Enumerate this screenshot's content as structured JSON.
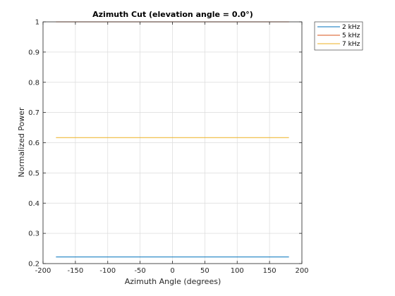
{
  "chart_data": {
    "type": "line",
    "title": "Azimuth Cut (elevation angle = 0.0°)",
    "xlabel": "Azimuth Angle (degrees)",
    "ylabel": "Normalized Power",
    "xlim": [
      -200,
      200
    ],
    "ylim": [
      0.2,
      1
    ],
    "xticks": [
      "-200",
      "-150",
      "-100",
      "-50",
      "0",
      "50",
      "100",
      "150",
      "200"
    ],
    "yticks": [
      "0.2",
      "0.3",
      "0.4",
      "0.5",
      "0.6",
      "0.7",
      "0.8",
      "0.9",
      "1"
    ],
    "grid": true,
    "legend_position": "outside-top-right",
    "series": [
      {
        "name": "2 kHz",
        "color": "#0072BD",
        "x": [
          -180,
          180
        ],
        "values": [
          0.222,
          0.222
        ]
      },
      {
        "name": "5 kHz",
        "color": "#D95319",
        "x": [
          -180,
          180
        ],
        "values": [
          1.0,
          1.0
        ]
      },
      {
        "name": "7 kHz",
        "color": "#EDB120",
        "x": [
          -180,
          180
        ],
        "values": [
          0.617,
          0.617
        ]
      }
    ]
  }
}
